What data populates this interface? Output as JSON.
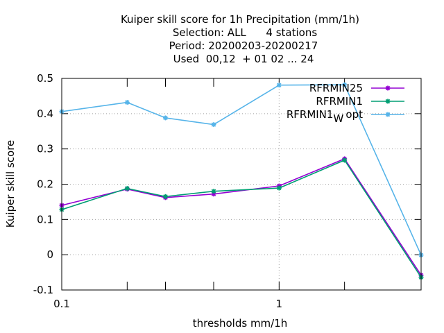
{
  "chart_data": {
    "type": "line",
    "title_lines": [
      "Kuiper skill score  for 1h Precipitation (mm/1h)",
      "Selection: ALL      4 stations",
      "Period: 20200203-20200217",
      "Used  00,12  + 01 02 ... 24"
    ],
    "xlabel": "thresholds mm/1h",
    "ylabel": "Kuiper skill score",
    "x_scale": "log",
    "xlim": [
      0.1,
      4.5
    ],
    "ylim": [
      -0.1,
      0.5
    ],
    "x_tick_labels": [
      {
        "value": 0.1,
        "label": "0.1"
      },
      {
        "value": 1,
        "label": "1"
      }
    ],
    "x_minor_ticks": [
      0.2,
      0.3,
      0.5,
      2
    ],
    "y_ticks": [
      {
        "value": -0.1,
        "label": "-0.1"
      },
      {
        "value": 0,
        "label": "0"
      },
      {
        "value": 0.1,
        "label": "0.1"
      },
      {
        "value": 0.2,
        "label": "0.2"
      },
      {
        "value": 0.3,
        "label": "0.3"
      },
      {
        "value": 0.4,
        "label": "0.4"
      },
      {
        "value": 0.5,
        "label": "0.5"
      }
    ],
    "grid": true,
    "legend_position": "top-right",
    "series": [
      {
        "name": "RFRMIN25",
        "color": "#9400d3",
        "x": [
          0.1,
          0.2,
          0.3,
          0.5,
          1,
          2,
          4.5
        ],
        "y": [
          0.14,
          0.186,
          0.162,
          0.172,
          0.195,
          0.272,
          -0.058
        ]
      },
      {
        "name": "RFRMIN1",
        "color": "#009e73",
        "x": [
          0.1,
          0.2,
          0.3,
          0.5,
          1,
          2,
          4.5
        ],
        "y": [
          0.128,
          0.188,
          0.165,
          0.18,
          0.189,
          0.268,
          -0.064
        ]
      },
      {
        "name": "RFRMIN1",
        "name_subscript": "W",
        "name_suffix": "opt",
        "color": "#56b4e9",
        "x": [
          0.1,
          0.2,
          0.3,
          0.5,
          1,
          2,
          4.5
        ],
        "y": [
          0.406,
          0.432,
          0.388,
          0.369,
          0.481,
          0.482,
          -0.001
        ]
      }
    ]
  }
}
